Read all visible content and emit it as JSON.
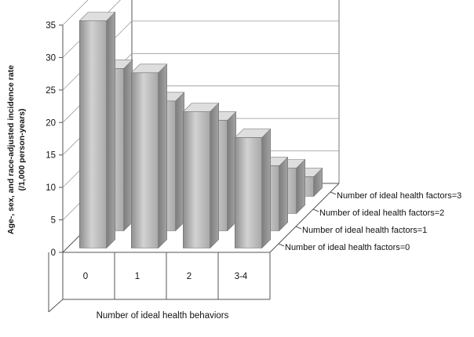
{
  "chart_data": {
    "type": "bar",
    "subtype": "3d-clustered",
    "title": "",
    "xlabel": "Number of ideal health behaviors",
    "ylabel_line1": "Age-, sex, and race-adjusted incidence rate",
    "ylabel_line2": "(/1,000 person-years)",
    "ylim": [
      0,
      35
    ],
    "yticks": [
      0,
      5,
      10,
      15,
      20,
      25,
      30,
      35
    ],
    "categories": [
      "0",
      "1",
      "2",
      "3-4"
    ],
    "series": [
      {
        "name": "Number of ideal health factors=0",
        "values": [
          35,
          27,
          21,
          17
        ]
      },
      {
        "name": "Number of ideal health factors=1",
        "values": [
          25,
          20,
          17,
          10
        ]
      },
      {
        "name": "Number of ideal health factors=2",
        "values": [
          17,
          14,
          9,
          7
        ]
      },
      {
        "name": "Number of ideal health factors=3",
        "values": [
          11,
          11,
          6,
          3
        ]
      }
    ],
    "grid": true,
    "legend": "none",
    "colors": {
      "bar_front": "#b8b8b8",
      "bar_side": "#8c8c8c",
      "bar_top": "#dedede",
      "axis": "#555555",
      "grid": "#9a9a9a"
    }
  }
}
